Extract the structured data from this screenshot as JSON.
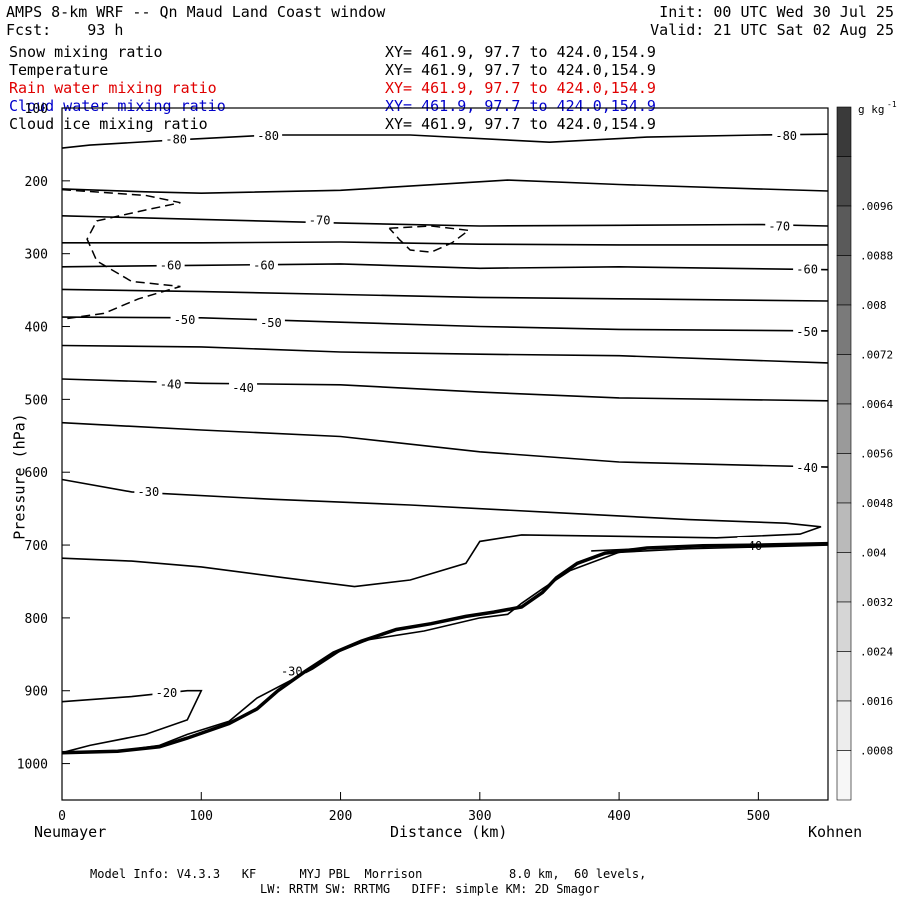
{
  "header": {
    "title": "AMPS 8-km WRF -- Qn Maud Land Coast window",
    "fcst": "Fcst:    93 h",
    "init": "Init: 00 UTC Wed 30 Jul 25",
    "valid": "Valid: 21 UTC Sat 02 Aug 25"
  },
  "fields": [
    {
      "name": "Snow mixing ratio",
      "xy": "XY= 461.9, 97.7 to 424.0,154.9",
      "color": "#000000"
    },
    {
      "name": "Temperature",
      "xy": "XY= 461.9, 97.7 to 424.0,154.9",
      "color": "#000000"
    },
    {
      "name": "Rain water mixing ratio",
      "xy": "XY= 461.9, 97.7 to 424.0,154.9",
      "color": "#e00000"
    },
    {
      "name": "Cloud water mixing ratio",
      "xy": "XY= 461.9, 97.7 to 424.0,154.9",
      "color": "#0000cc"
    },
    {
      "name": "Cloud ice mixing ratio",
      "xy": "XY= 461.9, 97.7 to 424.0,154.9",
      "color": "#000000"
    }
  ],
  "footer": {
    "line1": "Model Info: V4.3.3   KF      MYJ PBL  Morrison            8.0 km,  60 levels,",
    "line2": "LW: RRTM SW: RRTMG   DIFF: simple KM: 2D Smagor"
  },
  "chart_data": {
    "type": "line",
    "title": "",
    "xlabel": "Distance (km)",
    "ylabel": "Pressure (hPa)",
    "xlim": [
      0,
      550
    ],
    "ylim": [
      1050,
      100
    ],
    "x_ticks": [
      0,
      100,
      200,
      300,
      400,
      500
    ],
    "y_ticks": [
      100,
      200,
      300,
      400,
      500,
      600,
      700,
      800,
      900,
      1000
    ],
    "endpoints": {
      "left": "Neumayer",
      "right": "Kohnen"
    },
    "colorbar": {
      "unit": "g kg",
      "unit_exp": "-1",
      "labels": [
        ".0096",
        ".0088",
        ".008",
        ".0072",
        ".0064",
        ".0056",
        ".0048",
        ".004",
        ".0032",
        ".0024",
        ".0016",
        ".0008"
      ],
      "colors": [
        "#3a3a3a",
        "#4a4a4a",
        "#5a5a5a",
        "#6a6a6a",
        "#7a7a7a",
        "#8a8a8a",
        "#9a9a9a",
        "#aaaaaa",
        "#bababa",
        "#c8c8c8",
        "#d6d6d6",
        "#e2e2e2",
        "#ededed",
        "#f7f7f7"
      ]
    },
    "temperature_contours": [
      {
        "level": "-80",
        "points": [
          [
            0,
            155
          ],
          [
            20,
            151
          ],
          [
            80,
            144
          ],
          [
            150,
            137
          ],
          [
            250,
            137
          ],
          [
            350,
            147
          ],
          [
            420,
            140
          ],
          [
            500,
            137
          ],
          [
            550,
            136
          ]
        ],
        "labels": [
          [
            82,
            142
          ],
          [
            148,
            137
          ],
          [
            520,
            137
          ]
        ]
      },
      {
        "level": "-80",
        "points": [
          [
            0,
            211
          ],
          [
            60,
            215
          ],
          [
            100,
            217
          ],
          [
            200,
            213
          ],
          [
            320,
            199
          ],
          [
            400,
            205
          ],
          [
            500,
            211
          ],
          [
            550,
            214
          ]
        ],
        "labels": []
      },
      {
        "level": "-70",
        "points": [
          [
            0,
            248
          ],
          [
            100,
            253
          ],
          [
            200,
            258
          ],
          [
            300,
            262
          ],
          [
            400,
            261
          ],
          [
            500,
            260
          ],
          [
            550,
            262
          ]
        ],
        "labels": [
          [
            185,
            253
          ],
          [
            515,
            261
          ]
        ]
      },
      {
        "level": "-70",
        "points": [
          [
            0,
            285
          ],
          [
            100,
            285
          ],
          [
            200,
            284
          ],
          [
            300,
            287
          ],
          [
            400,
            288
          ],
          [
            550,
            288
          ]
        ],
        "labels": []
      },
      {
        "level": "-60",
        "points": [
          [
            0,
            318
          ],
          [
            100,
            316
          ],
          [
            200,
            314
          ],
          [
            300,
            320
          ],
          [
            400,
            318
          ],
          [
            550,
            322
          ]
        ],
        "labels": [
          [
            78,
            315
          ],
          [
            145,
            315
          ],
          [
            535,
            320
          ]
        ]
      },
      {
        "level": "-60",
        "points": [
          [
            0,
            349
          ],
          [
            100,
            352
          ],
          [
            200,
            356
          ],
          [
            300,
            360
          ],
          [
            400,
            362
          ],
          [
            550,
            365
          ]
        ],
        "labels": []
      },
      {
        "level": "-50",
        "points": [
          [
            0,
            387
          ],
          [
            100,
            388
          ],
          [
            200,
            394
          ],
          [
            300,
            400
          ],
          [
            400,
            404
          ],
          [
            550,
            406
          ]
        ],
        "labels": [
          [
            88,
            390
          ],
          [
            150,
            394
          ],
          [
            535,
            406
          ]
        ]
      },
      {
        "level": "-50",
        "points": [
          [
            0,
            426
          ],
          [
            100,
            428
          ],
          [
            200,
            435
          ],
          [
            300,
            438
          ],
          [
            400,
            440
          ],
          [
            550,
            450
          ]
        ],
        "labels": []
      },
      {
        "level": "-40",
        "points": [
          [
            0,
            472
          ],
          [
            100,
            478
          ],
          [
            200,
            480
          ],
          [
            300,
            490
          ],
          [
            400,
            498
          ],
          [
            550,
            502
          ]
        ],
        "labels": [
          [
            78,
            478
          ],
          [
            130,
            483
          ]
        ]
      },
      {
        "level": "-40",
        "points": [
          [
            0,
            532
          ],
          [
            100,
            542
          ],
          [
            200,
            551
          ],
          [
            300,
            572
          ],
          [
            400,
            586
          ],
          [
            550,
            593
          ]
        ],
        "labels": [
          [
            535,
            593
          ]
        ]
      },
      {
        "level": "-30",
        "points": [
          [
            0,
            610
          ],
          [
            50,
            627
          ],
          [
            150,
            637
          ],
          [
            250,
            645
          ],
          [
            350,
            655
          ],
          [
            450,
            665
          ],
          [
            520,
            670
          ],
          [
            545,
            675
          ],
          [
            530,
            685
          ],
          [
            470,
            690
          ],
          [
            400,
            688
          ],
          [
            330,
            686
          ],
          [
            300,
            695
          ],
          [
            290,
            725
          ],
          [
            250,
            748
          ],
          [
            210,
            757
          ],
          [
            160,
            745
          ],
          [
            100,
            730
          ],
          [
            50,
            722
          ],
          [
            0,
            718
          ]
        ],
        "labels": [
          [
            62,
            626
          ]
        ]
      },
      {
        "level": "-20",
        "points": [
          [
            0,
            915
          ],
          [
            50,
            908
          ],
          [
            90,
            900
          ],
          [
            100,
            900
          ],
          [
            90,
            940
          ],
          [
            60,
            960
          ],
          [
            20,
            975
          ],
          [
            0,
            985
          ]
        ],
        "labels": [
          [
            75,
            902
          ]
        ]
      },
      {
        "level": "-40",
        "points": [
          [
            380,
            708
          ],
          [
            450,
            702
          ],
          [
            520,
            700
          ],
          [
            550,
            698
          ]
        ],
        "labels": [
          [
            495,
            700
          ]
        ]
      },
      {
        "level": "-30",
        "points": [
          [
            0,
            985
          ],
          [
            40,
            983
          ],
          [
            70,
            975
          ],
          [
            90,
            960
          ],
          [
            120,
            942
          ],
          [
            140,
            910
          ],
          [
            180,
            870
          ],
          [
            200,
            845
          ],
          [
            220,
            830
          ],
          [
            260,
            818
          ],
          [
            300,
            800
          ],
          [
            320,
            795
          ],
          [
            330,
            780
          ],
          [
            345,
            760
          ],
          [
            365,
            735
          ],
          [
            400,
            710
          ],
          [
            450,
            705
          ],
          [
            550,
            700
          ]
        ],
        "labels": [
          [
            165,
            872
          ]
        ]
      }
    ],
    "snow_mixing_dashed": [
      {
        "points": [
          [
            0,
            212
          ],
          [
            60,
            220
          ],
          [
            85,
            230
          ],
          [
            60,
            240
          ],
          [
            25,
            255
          ],
          [
            18,
            280
          ],
          [
            25,
            310
          ],
          [
            50,
            338
          ],
          [
            85,
            345
          ],
          [
            55,
            362
          ],
          [
            30,
            382
          ],
          [
            0,
            390
          ]
        ]
      },
      {
        "points": [
          [
            235,
            265
          ],
          [
            265,
            262
          ],
          [
            292,
            268
          ],
          [
            280,
            285
          ],
          [
            265,
            298
          ],
          [
            250,
            295
          ],
          [
            242,
            280
          ],
          [
            235,
            265
          ]
        ]
      }
    ],
    "terrain": [
      [
        0,
        985
      ],
      [
        40,
        983
      ],
      [
        70,
        977
      ],
      [
        90,
        965
      ],
      [
        120,
        945
      ],
      [
        140,
        925
      ],
      [
        155,
        900
      ],
      [
        175,
        873
      ],
      [
        195,
        848
      ],
      [
        215,
        832
      ],
      [
        240,
        816
      ],
      [
        265,
        808
      ],
      [
        290,
        798
      ],
      [
        310,
        792
      ],
      [
        330,
        785
      ],
      [
        345,
        765
      ],
      [
        355,
        745
      ],
      [
        370,
        725
      ],
      [
        390,
        711
      ],
      [
        420,
        704
      ],
      [
        460,
        701
      ],
      [
        500,
        700
      ],
      [
        550,
        698
      ]
    ]
  }
}
